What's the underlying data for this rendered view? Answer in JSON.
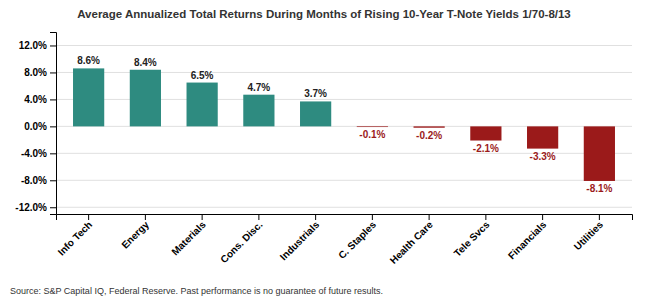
{
  "chart_data": {
    "type": "bar",
    "title": "Average Annualized Total Returns During Months of Rising 10-Year T-Note Yields 1/70-8/13",
    "categories": [
      "Info Tech",
      "Energy",
      "Materials",
      "Cons. Disc.",
      "Industrials",
      "C. Staples",
      "Health Care",
      "Tele Svcs",
      "Financials",
      "Utilities"
    ],
    "values": [
      8.6,
      8.4,
      6.5,
      4.7,
      3.7,
      -0.1,
      -0.2,
      -2.1,
      -3.3,
      -8.1
    ],
    "value_labels": [
      "8.6%",
      "8.4%",
      "6.5%",
      "4.7%",
      "3.7%",
      "-0.1%",
      "-0.2%",
      "-2.1%",
      "-3.3%",
      "-8.1%"
    ],
    "colors": [
      "#2E8B80",
      "#2E8B80",
      "#2E8B80",
      "#2E8B80",
      "#2E8B80",
      "#9B1A1A",
      "#9B1A1A",
      "#9B1A1A",
      "#9B1A1A",
      "#9B1A1A"
    ],
    "ylim": [
      -13,
      14
    ],
    "yticks": [
      {
        "value": -12,
        "label": "-12.0%"
      },
      {
        "value": -8,
        "label": "-8.0%"
      },
      {
        "value": -4,
        "label": "-4.0%"
      },
      {
        "value": 0,
        "label": "0.0%"
      },
      {
        "value": 4,
        "label": "4.0%"
      },
      {
        "value": 8,
        "label": "8.0%"
      },
      {
        "value": 12,
        "label": "12.0%"
      }
    ],
    "grid": true,
    "data_labels": true,
    "annotations": [
      "Source: S&P Capital IQ, Federal Reserve. Past performance is no guarantee of future results."
    ]
  }
}
